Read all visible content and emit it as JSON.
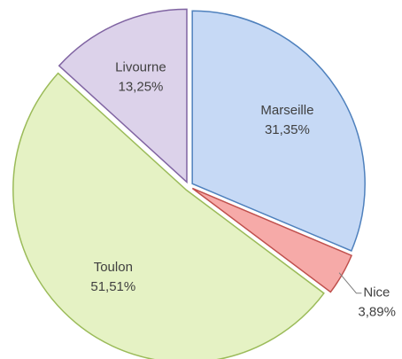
{
  "chart_data": {
    "type": "pie",
    "categories": [
      "Marseille",
      "Nice",
      "Toulon",
      "Livourne"
    ],
    "values": [
      31.35,
      3.89,
      51.51,
      13.25
    ],
    "value_labels": [
      "31,35%",
      "3,89%",
      "51,51%",
      "13,25%"
    ],
    "colors": [
      "#c6d9f5",
      "#f6aaa8",
      "#e5f2c4",
      "#dcd2ea"
    ],
    "stroke_colors": [
      "#4f81bd",
      "#c0504d",
      "#9bbb59",
      "#8064a2"
    ]
  }
}
